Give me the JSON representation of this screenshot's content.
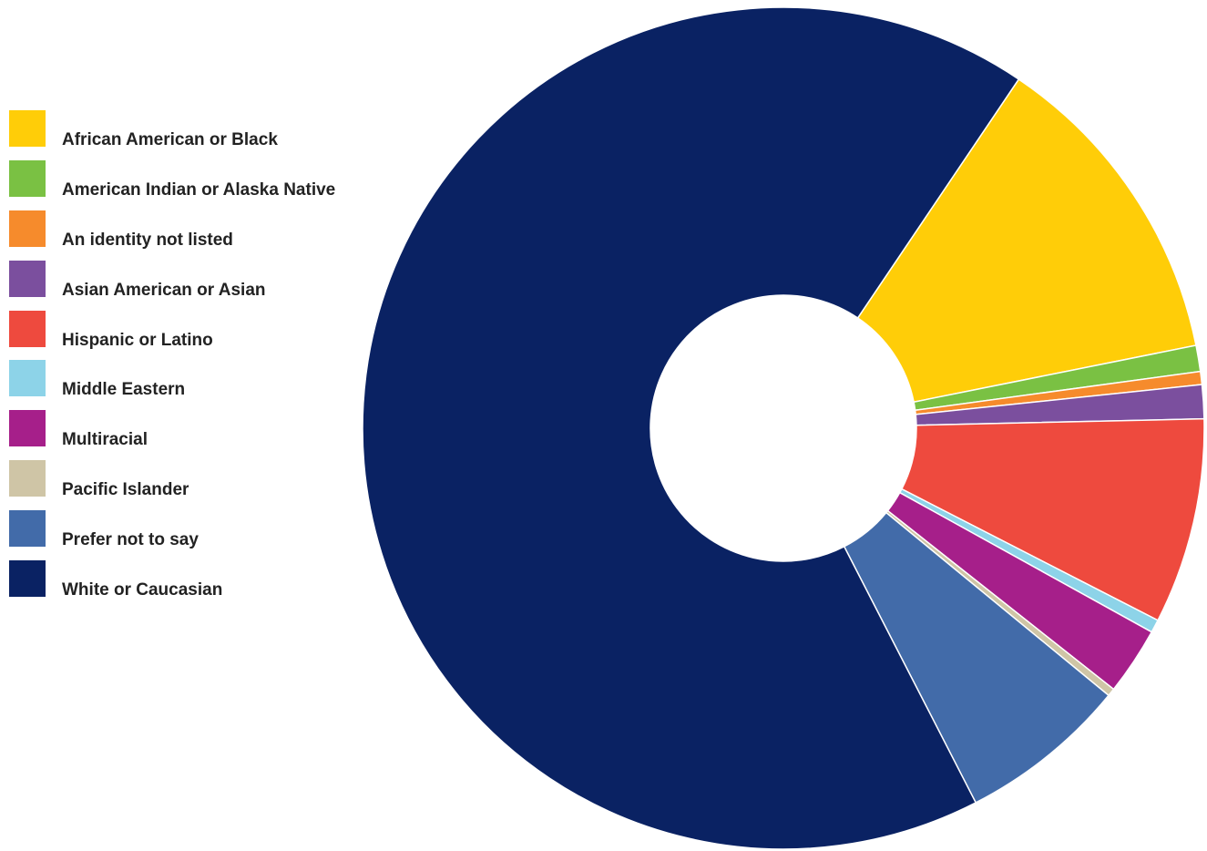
{
  "chart_data": {
    "type": "pie",
    "style": "donut",
    "legend_position": "left",
    "categories": [
      "African American or Black",
      "American Indian or Alaska Native",
      "An identity not listed",
      "Asian American or Asian",
      "Hispanic or Latino",
      "Middle Eastern",
      "Multiracial",
      "Pacific Islander",
      "Prefer not to say",
      "White or Caucasian"
    ],
    "values": [
      12.4,
      1.0,
      0.5,
      1.3,
      7.9,
      0.5,
      2.6,
      0.3,
      6.5,
      67.0
    ],
    "colors": [
      "#FFCD08",
      "#7AC143",
      "#F68B2C",
      "#7B4F9E",
      "#EE4A3E",
      "#8DD3E8",
      "#A61F8A",
      "#CFC5A6",
      "#426BA9",
      "#0A2263"
    ]
  }
}
